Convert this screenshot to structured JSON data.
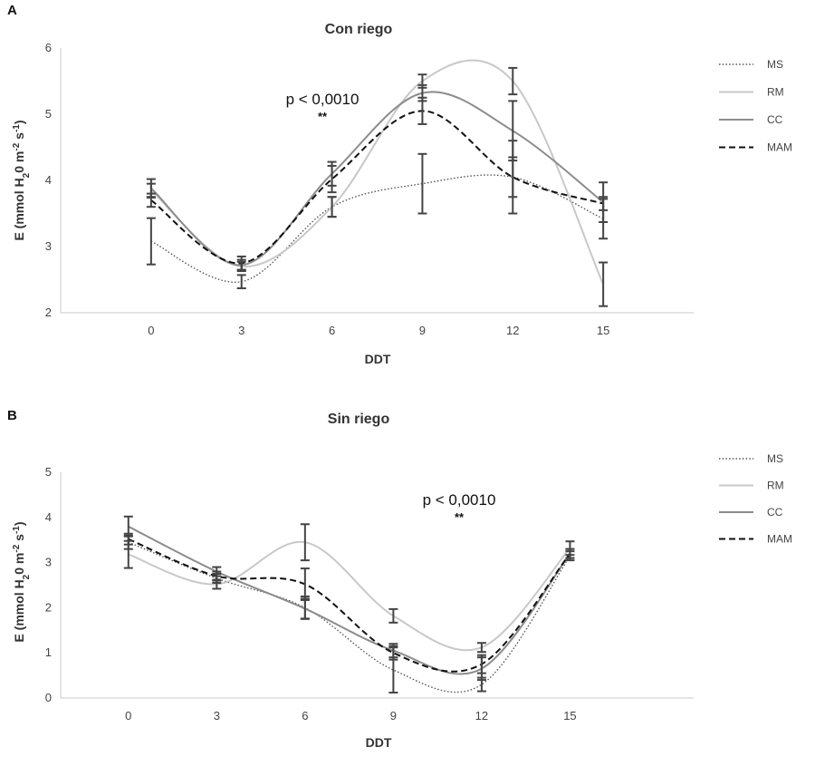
{
  "series_styles": [
    {
      "name": "MS",
      "color": "#555555",
      "dash": "dotted"
    },
    {
      "name": "RM",
      "color": "#c8c8c8",
      "dash": "solid"
    },
    {
      "name": "CC",
      "color": "#8c8c8c",
      "dash": "solid"
    },
    {
      "name": "MAM",
      "color": "#111111",
      "dash": "dashed"
    }
  ],
  "errorbar_color": "#444444",
  "chart_data": [
    {
      "panel": "A",
      "type": "line",
      "title": "Con riego",
      "xlabel": "DDT",
      "ylabel_parts": {
        "a": "E (mmol H",
        "b": "2",
        "c": "0 m",
        "d": "-2",
        "e": " s",
        "f": "-1",
        "g": ")"
      },
      "x": [
        0,
        3,
        6,
        9,
        12,
        15
      ],
      "xlim": [
        -3,
        18
      ],
      "ylim": [
        2,
        6
      ],
      "yticks": [
        2,
        3,
        4,
        5,
        6
      ],
      "grid": false,
      "legend_position": "right",
      "annotation": {
        "text": "p < 0,0010",
        "stars": "**",
        "at_x": 6.5
      },
      "series": [
        {
          "name": "MS",
          "values": [
            3.08,
            2.47,
            3.6,
            3.95,
            4.05,
            3.42
          ],
          "errors": [
            0.35,
            0.1,
            0.15,
            0.45,
            0.55,
            0.3
          ]
        },
        {
          "name": "RM",
          "values": [
            3.85,
            2.7,
            3.6,
            5.5,
            5.5,
            2.43
          ],
          "errors": [
            0.1,
            0.07,
            0.15,
            0.1,
            0.2,
            0.33
          ]
        },
        {
          "name": "CC",
          "values": [
            3.88,
            2.72,
            4.1,
            5.32,
            4.75,
            3.67
          ],
          "errors": [
            0.14,
            0.08,
            0.18,
            0.12,
            0.45,
            0.3
          ]
        },
        {
          "name": "MAM",
          "values": [
            3.7,
            2.75,
            4.02,
            5.05,
            4.05,
            3.65
          ],
          "errors": [
            0.1,
            0.1,
            0.2,
            0.2,
            0.3,
            0.1
          ]
        }
      ]
    },
    {
      "panel": "B",
      "type": "line",
      "title": "Sin riego",
      "xlabel": "DDT",
      "ylabel_parts": {
        "a": "E (mmol H",
        "b": "2",
        "c": "0 m",
        "d": "-2",
        "e": " s",
        "f": "-1",
        "g": ")"
      },
      "x": [
        0,
        3,
        6,
        9,
        12,
        15
      ],
      "xlim": [
        -2.3,
        19.2
      ],
      "ylim": [
        0,
        5
      ],
      "yticks": [
        0,
        1,
        2,
        3,
        4,
        5
      ],
      "grid": false,
      "legend_position": "right",
      "annotation": {
        "text": "p < 0,0010",
        "stars": "**",
        "at_x": 9.5
      },
      "series": [
        {
          "name": "MS",
          "values": [
            3.45,
            2.65,
            2.0,
            0.62,
            0.3,
            3.15
          ],
          "errors": [
            0.15,
            0.1,
            0.25,
            0.5,
            0.15,
            0.1
          ]
        },
        {
          "name": "RM",
          "values": [
            3.18,
            2.52,
            3.45,
            1.82,
            1.12,
            3.32
          ],
          "errors": [
            0.3,
            0.1,
            0.4,
            0.15,
            0.1,
            0.15
          ]
        },
        {
          "name": "CC",
          "values": [
            3.8,
            2.8,
            1.98,
            1.05,
            0.65,
            3.2
          ],
          "errors": [
            0.22,
            0.1,
            0.22,
            0.15,
            0.25,
            0.1
          ]
        },
        {
          "name": "MAM",
          "values": [
            3.52,
            2.7,
            2.52,
            1.0,
            0.75,
            3.2
          ],
          "errors": [
            0.12,
            0.1,
            0.35,
            0.15,
            0.2,
            0.1
          ]
        }
      ]
    }
  ]
}
